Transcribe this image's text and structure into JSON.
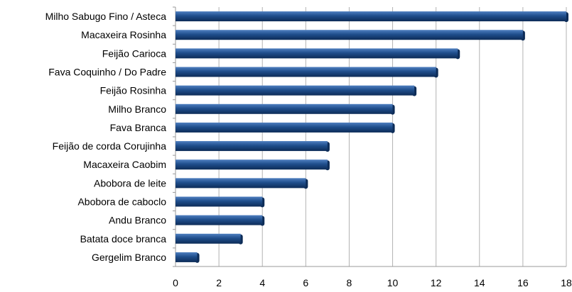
{
  "chart_data": {
    "type": "bar",
    "orientation": "horizontal",
    "categories": [
      "Milho Sabugo Fino / Asteca",
      "Macaxeira Rosinha",
      "Feijão Carioca",
      "Fava Coquinho / Do Padre",
      "Feijão Rosinha",
      "Milho Branco",
      "Fava Branca",
      "Feijão de corda Corujinha",
      "Macaxeira Caobim",
      "Abobora de leite",
      "Abobora de caboclo ",
      "Andu Branco",
      "Batata doce branca",
      "Gergelim Branco"
    ],
    "values": [
      18,
      16,
      13,
      12,
      11,
      10,
      10,
      7,
      7,
      6,
      4,
      4,
      3,
      1
    ],
    "title": "",
    "xlabel": "",
    "ylabel": "",
    "xlim": [
      0,
      18
    ],
    "xticks": [
      "0",
      "2",
      "4",
      "6",
      "8",
      "10",
      "12",
      "14",
      "16",
      "18"
    ],
    "grid": "vertical",
    "legend": "none",
    "colors": {
      "bar": "#1f4e8c",
      "bar_highlight": "#4f7fc0",
      "bar_shadow": "#0d2c57",
      "grid": "#b3b3b3",
      "axis": "#999999"
    }
  }
}
